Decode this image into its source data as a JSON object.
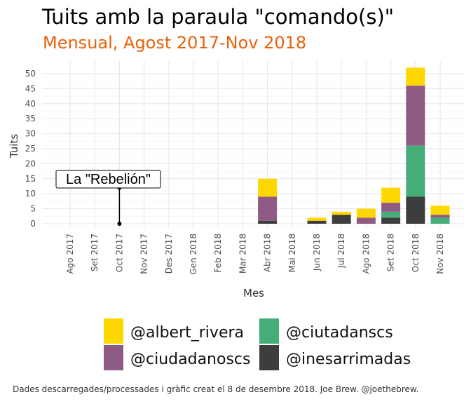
{
  "title": "Tuits amb la paraula \"comando(s)\"",
  "subtitle": "Mensual, Agost 2017-Nov 2018",
  "caption": "Dades descarregades/processades i gràfic creat el 8 de desembre 2018. Joe Brew. @joethebrew.",
  "chart_data": {
    "type": "bar",
    "stacked": true,
    "xlabel": "Mes",
    "ylabel": "Tuits",
    "ylim": [
      0,
      52
    ],
    "yticks": [
      0,
      5,
      10,
      15,
      20,
      25,
      30,
      35,
      40,
      45,
      50
    ],
    "grid": true,
    "legend_placement": "bottom",
    "categories": [
      "Ago 2017",
      "Set 2017",
      "Oct 2017",
      "Nov 2017",
      "Des 2017",
      "Gen 2018",
      "Feb 2018",
      "Mar 2018",
      "Abr 2018",
      "Mai 2018",
      "Jun 2018",
      "Jul 2018",
      "Ago 2018",
      "Set 2018",
      "Oct 2018",
      "Nov 2018"
    ],
    "series": [
      {
        "name": "@inesarrimadas",
        "color": "#3D3D3D",
        "values": [
          0,
          0,
          0,
          0,
          0,
          0,
          0,
          0,
          1,
          0,
          1,
          3,
          0,
          2,
          9,
          0
        ]
      },
      {
        "name": "@ciutadanscs",
        "color": "#45AD78",
        "values": [
          0,
          0,
          0,
          0,
          0,
          0,
          0,
          0,
          0,
          0,
          0,
          0,
          0,
          2,
          17,
          2
        ]
      },
      {
        "name": "@ciudadanoscs",
        "color": "#8F5A84",
        "values": [
          0,
          0,
          0,
          0,
          0,
          0,
          0,
          0,
          8,
          0,
          0,
          0,
          2,
          3,
          20,
          1
        ]
      },
      {
        "name": "@albert_rivera",
        "color": "#FFD700",
        "values": [
          0,
          0,
          0,
          0,
          0,
          0,
          0,
          0,
          6,
          0,
          1,
          1,
          3,
          5,
          6,
          3
        ]
      }
    ],
    "legend_order": [
      "@albert_rivera",
      "@ciutadanscs",
      "@ciudadanoscs",
      "@inesarrimadas"
    ],
    "annotation": {
      "label": "La \"Rebelión\"",
      "x_category": "Oct 2017",
      "y_from": 0,
      "y_to": 12
    }
  }
}
